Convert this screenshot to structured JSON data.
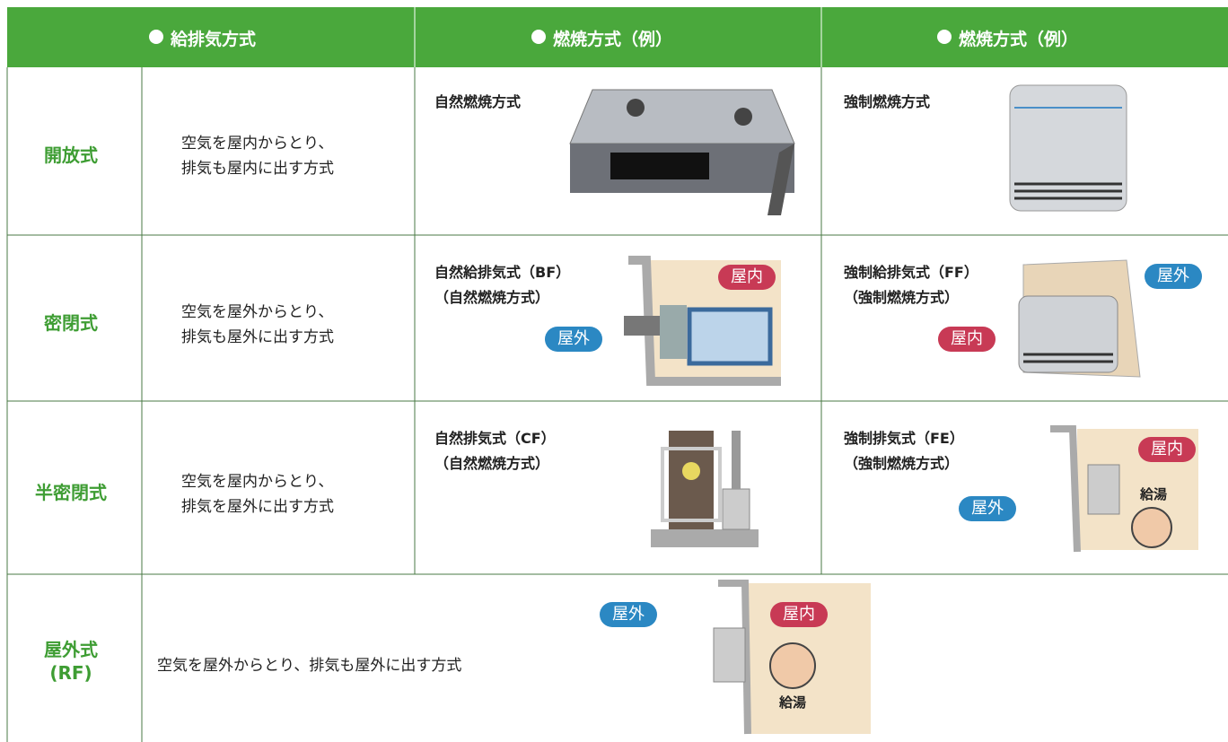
{
  "header": {
    "columns": [
      "給排気方式",
      "燃焼方式（例）",
      "燃焼方式（例）"
    ]
  },
  "rows": [
    {
      "name": [
        "開放式"
      ],
      "description": [
        "空気を屋内からとり、",
        "排気も屋内に出す方式"
      ],
      "examples": [
        {
          "title": [
            "自然燃焼方式"
          ]
        },
        {
          "title": [
            "強制燃焼方式"
          ]
        }
      ]
    },
    {
      "name": [
        "密閉式"
      ],
      "description": [
        "空気を屋外からとり、",
        "排気も屋外に出す方式"
      ],
      "examples": [
        {
          "title": [
            "自然給排気式（BF）",
            "（自然燃焼方式）"
          ],
          "badges": [
            "屋内",
            "屋外"
          ]
        },
        {
          "title": [
            "強制給排気式（FF）",
            "（強制燃焼方式）"
          ],
          "badges": [
            "屋外",
            "屋内"
          ]
        }
      ]
    },
    {
      "name": [
        "半密閉式"
      ],
      "description": [
        "空気を屋内からとり、",
        "排気を屋外に出す方式"
      ],
      "examples": [
        {
          "title": [
            "自然排気式（CF）",
            "（自然燃焼方式）"
          ]
        },
        {
          "title": [
            "強制排気式（FE）",
            "（強制燃焼方式）"
          ],
          "badges": [
            "屋内",
            "屋外"
          ],
          "note": "給湯"
        }
      ]
    },
    {
      "name": [
        "屋外式",
        "(RF)"
      ],
      "description": [
        "空気を屋外からとり、排気も屋外に出す方式"
      ],
      "badges": [
        "屋外",
        "屋内"
      ],
      "note": "給湯"
    }
  ]
}
